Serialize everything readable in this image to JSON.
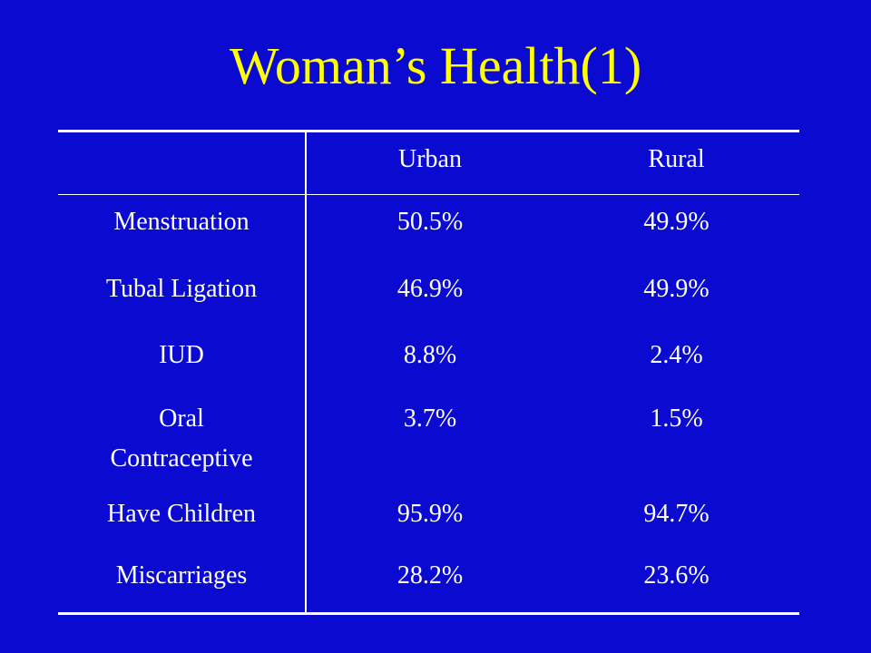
{
  "slide": {
    "title": "Woman’s Health(1)",
    "background_color": "#0a0ad0",
    "title_color": "#ffff00"
  },
  "table": {
    "headers": [
      "",
      "Urban",
      "Rural"
    ],
    "rows": [
      {
        "label_lines": [
          "Menstruation"
        ],
        "urban": "50.5%",
        "rural": "49.9%"
      },
      {
        "label_lines": [
          "Tubal Ligation"
        ],
        "urban": "46.9%",
        "rural": "49.9%"
      },
      {
        "label_lines": [
          "IUD"
        ],
        "urban": "8.8%",
        "rural": "2.4%"
      },
      {
        "label_lines": [
          "Oral",
          "Contraceptive"
        ],
        "urban": "3.7%",
        "rural": "1.5%"
      },
      {
        "label_lines": [
          "Have Children"
        ],
        "urban": "95.9%",
        "rural": "94.7%"
      },
      {
        "label_lines": [
          "Miscarriages"
        ],
        "urban": "28.2%",
        "rural": "23.6%"
      }
    ]
  }
}
